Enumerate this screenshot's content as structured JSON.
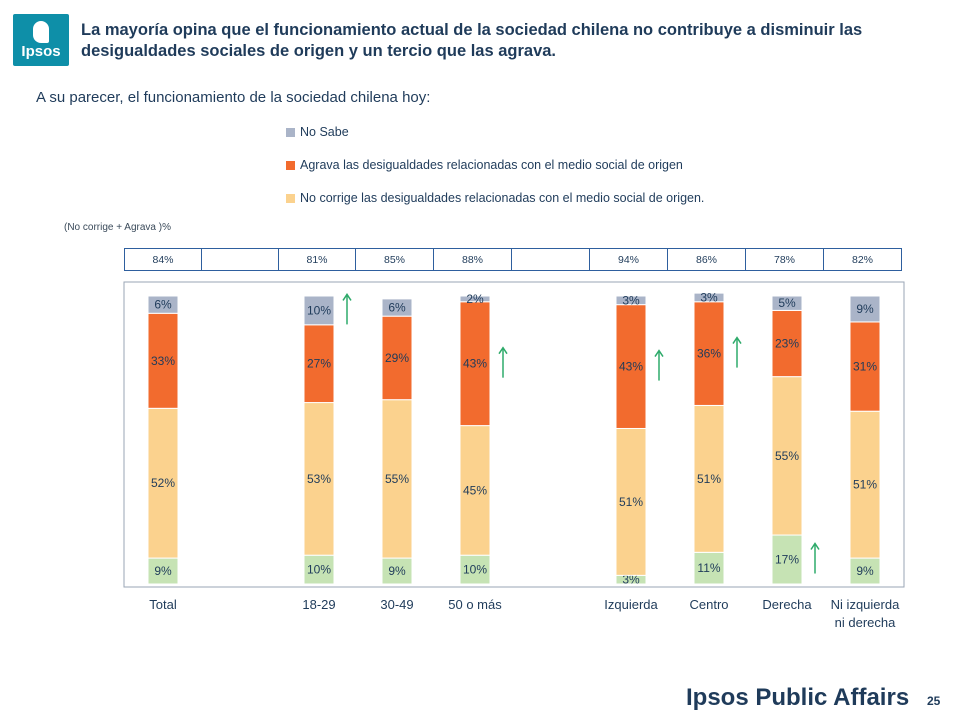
{
  "header": {
    "logo_text": "Ipsos",
    "headline": "La mayoría opina que el funcionamiento actual de la sociedad chilena no contribuye a disminuir las desigualdades sociales de origen y un tercio que las agrava.",
    "question": "A su parecer, el funcionamiento de la sociedad chilena hoy:"
  },
  "legend": [
    {
      "label": "No Sabe",
      "color": "#aab4c8"
    },
    {
      "label": "Agrava las desigualdades relacionadas con el medio social de origen",
      "color": "#f26b2e"
    },
    {
      "label": "No corrige las desigualdades relacionadas con el medio social de origen.",
      "color": "#fbd28e"
    }
  ],
  "summary": {
    "note": "(No corrige + Agrava )%",
    "values": [
      "84%",
      "",
      "81%",
      "85%",
      "88%",
      "",
      "94%",
      "86%",
      "78%",
      "82%"
    ]
  },
  "chart_data": {
    "type": "bar",
    "stacked": true,
    "categories": [
      "Total",
      "",
      "18-29",
      "30-49",
      "50 o más",
      "",
      "Izquierda",
      "Centro",
      "Derecha",
      "Ni izquierda ni derecha"
    ],
    "series": [
      {
        "color": "#c6e3b4",
        "values": [
          9,
          null,
          10,
          9,
          10,
          null,
          3,
          11,
          17,
          9
        ]
      },
      {
        "name": "No corrige las desigualdades relacionadas con el medio social de origen.",
        "color": "#fbd28e",
        "values": [
          52,
          null,
          53,
          55,
          45,
          null,
          51,
          51,
          55,
          51
        ]
      },
      {
        "name": "Agrava las desigualdades relacionadas con el medio social de origen",
        "color": "#f26b2e",
        "values": [
          33,
          null,
          27,
          29,
          43,
          null,
          43,
          36,
          23,
          31
        ]
      },
      {
        "name": "No Sabe",
        "color": "#aab4c8",
        "values": [
          6,
          null,
          10,
          6,
          2,
          null,
          3,
          3,
          5,
          9
        ]
      }
    ],
    "labels": [
      [
        "9%",
        "52%",
        "33%",
        "6%"
      ],
      null,
      [
        "10%",
        "53%",
        "27%",
        "10%"
      ],
      [
        "9%",
        "55%",
        "29%",
        "6%"
      ],
      [
        "10%",
        "45%",
        "43%",
        "2%"
      ],
      null,
      [
        "3%",
        "51%",
        "43%",
        "3%"
      ],
      [
        "11%",
        "51%",
        "36%",
        "3%"
      ],
      [
        "17%",
        "55%",
        "23%",
        "5%"
      ],
      [
        "9%",
        "51%",
        "31%",
        "9%"
      ]
    ],
    "up_arrows": [
      {
        "category": "18-29",
        "series": "No Sabe"
      },
      {
        "category": "50 o más",
        "series": "Agrava las desigualdades relacionadas con el medio social de origen"
      },
      {
        "category": "Izquierda",
        "series": "Agrava las desigualdades relacionadas con el medio social de origen"
      },
      {
        "category": "Centro",
        "series": "Agrava las desigualdades relacionadas con el medio social de origen"
      },
      {
        "category": "Derecha",
        "series": "bottom"
      }
    ],
    "arrow_color": "#2eaa6a",
    "ylim": [
      0,
      100
    ]
  },
  "footer": {
    "brand": "Ipsos Public Affairs",
    "page_number": "25"
  }
}
